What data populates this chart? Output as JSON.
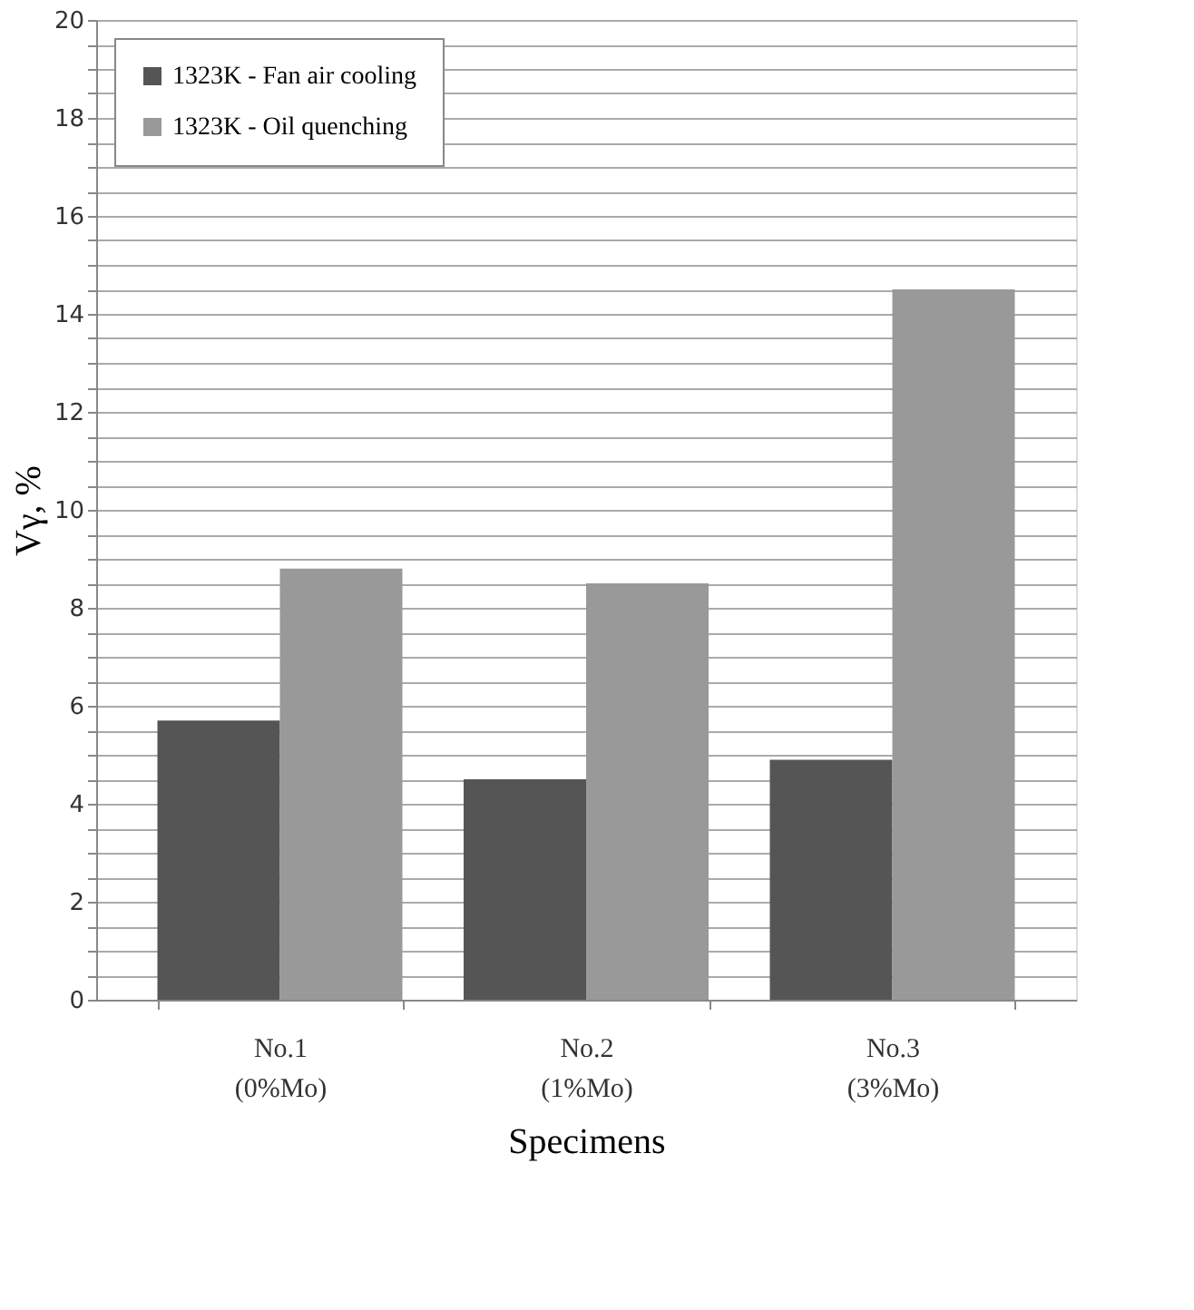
{
  "chart_data": {
    "type": "bar",
    "categories": [
      "No.1\n(0%Mo)",
      "No.2\n(1%Mo)",
      "No.3\n(3%Mo)"
    ],
    "series": [
      {
        "name": "1323K - Fan air cooling",
        "color": "#555555",
        "values": [
          5.7,
          4.5,
          4.9
        ]
      },
      {
        "name": "1323K - Oil quenching",
        "color": "#999999",
        "values": [
          8.8,
          8.5,
          14.5
        ]
      }
    ],
    "xlabel": "Specimens",
    "ylabel": "Vγ, %",
    "ylim": [
      0,
      20
    ],
    "yticks": [
      0,
      {
        "value": 0.5,
        "label": null
      },
      {
        "value": 1,
        "label": null
      },
      {
        "value": 1.5,
        "label": null
      },
      2,
      {
        "value": 2.5,
        "label": null
      },
      {
        "value": 3,
        "label": null
      },
      {
        "value": 3.5,
        "label": null
      },
      4,
      {
        "value": 4.5,
        "label": null
      },
      {
        "value": 5,
        "label": null
      },
      {
        "value": 5.5,
        "label": null
      },
      6,
      {
        "value": 6.5,
        "label": null
      },
      {
        "value": 7,
        "label": null
      },
      {
        "value": 7.5,
        "label": null
      },
      8,
      {
        "value": 8.5,
        "label": null
      },
      {
        "value": 9,
        "label": null
      },
      {
        "value": 9.5,
        "label": null
      },
      10,
      {
        "value": 10.5,
        "label": null
      },
      {
        "value": 11,
        "label": null
      },
      {
        "value": 11.5,
        "label": null
      },
      12,
      {
        "value": 12.5,
        "label": null
      },
      {
        "value": 13,
        "label": null
      },
      {
        "value": 13.5,
        "label": null
      },
      14,
      {
        "value": 14.5,
        "label": null
      },
      {
        "value": 15,
        "label": null
      },
      {
        "value": 15.5,
        "label": null
      },
      16,
      {
        "value": 16.5,
        "label": null
      },
      {
        "value": 17,
        "label": null
      },
      {
        "value": 17.5,
        "label": null
      },
      18,
      {
        "value": 18.5,
        "label": null
      },
      {
        "value": 19,
        "label": null
      },
      {
        "value": 19.5,
        "label": null
      },
      20
    ],
    "grid": "y",
    "legend": "top left"
  }
}
